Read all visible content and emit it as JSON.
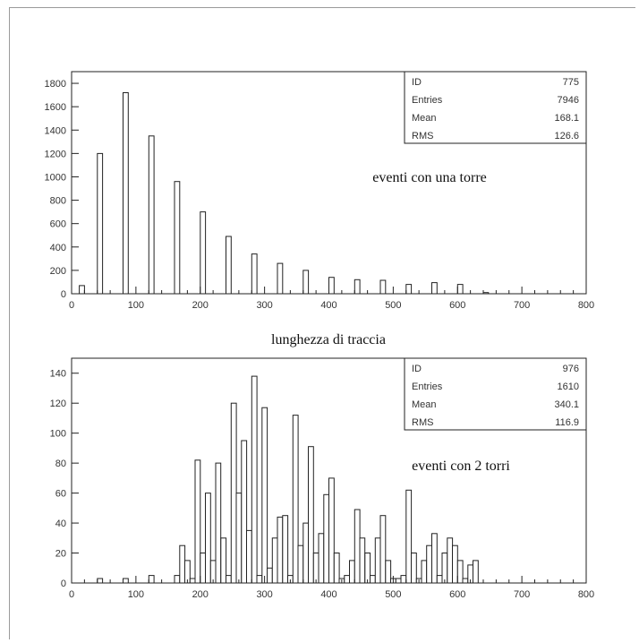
{
  "xlabel_between": "lunghezza di traccia",
  "chart_data": [
    {
      "type": "bar",
      "annotation": "eventi con una torre",
      "stats": [
        {
          "label": "ID",
          "value": "775"
        },
        {
          "label": "Entries",
          "value": "7946"
        },
        {
          "label": "Mean",
          "value": "168.1"
        },
        {
          "label": "RMS",
          "value": "126.6"
        }
      ],
      "xlim": [
        0,
        800
      ],
      "ylim": [
        0,
        1900
      ],
      "xticks": [
        0,
        100,
        200,
        300,
        400,
        500,
        600,
        700,
        800
      ],
      "yticks": [
        0,
        200,
        400,
        600,
        800,
        1000,
        1200,
        1400,
        1600,
        1800
      ],
      "bin_width": 8,
      "bins": [
        {
          "x": 12,
          "y": 70
        },
        {
          "x": 40,
          "y": 1200
        },
        {
          "x": 80,
          "y": 1720
        },
        {
          "x": 120,
          "y": 1350
        },
        {
          "x": 160,
          "y": 960
        },
        {
          "x": 200,
          "y": 700
        },
        {
          "x": 240,
          "y": 490
        },
        {
          "x": 280,
          "y": 340
        },
        {
          "x": 320,
          "y": 260
        },
        {
          "x": 360,
          "y": 200
        },
        {
          "x": 400,
          "y": 140
        },
        {
          "x": 440,
          "y": 120
        },
        {
          "x": 480,
          "y": 115
        },
        {
          "x": 520,
          "y": 80
        },
        {
          "x": 560,
          "y": 95
        },
        {
          "x": 600,
          "y": 80
        },
        {
          "x": 640,
          "y": 10
        }
      ]
    },
    {
      "type": "bar",
      "annotation": "eventi con 2 torri",
      "stats": [
        {
          "label": "ID",
          "value": "976"
        },
        {
          "label": "Entries",
          "value": "1610"
        },
        {
          "label": "Mean",
          "value": "340.1"
        },
        {
          "label": "RMS",
          "value": "116.9"
        }
      ],
      "xlim": [
        0,
        800
      ],
      "ylim": [
        0,
        150
      ],
      "xticks": [
        0,
        100,
        200,
        300,
        400,
        500,
        600,
        700,
        800
      ],
      "yticks": [
        0,
        20,
        40,
        60,
        80,
        100,
        120,
        140
      ],
      "bin_width": 8,
      "bins": [
        {
          "x": 40,
          "y": 3
        },
        {
          "x": 80,
          "y": 3
        },
        {
          "x": 120,
          "y": 5
        },
        {
          "x": 160,
          "y": 5
        },
        {
          "x": 168,
          "y": 25
        },
        {
          "x": 176,
          "y": 15
        },
        {
          "x": 184,
          "y": 3
        },
        {
          "x": 192,
          "y": 82
        },
        {
          "x": 200,
          "y": 20
        },
        {
          "x": 208,
          "y": 60
        },
        {
          "x": 216,
          "y": 15
        },
        {
          "x": 224,
          "y": 80
        },
        {
          "x": 232,
          "y": 30
        },
        {
          "x": 240,
          "y": 5
        },
        {
          "x": 248,
          "y": 120
        },
        {
          "x": 256,
          "y": 60
        },
        {
          "x": 264,
          "y": 95
        },
        {
          "x": 272,
          "y": 35
        },
        {
          "x": 280,
          "y": 138
        },
        {
          "x": 288,
          "y": 5
        },
        {
          "x": 296,
          "y": 117
        },
        {
          "x": 304,
          "y": 10
        },
        {
          "x": 312,
          "y": 30
        },
        {
          "x": 320,
          "y": 44
        },
        {
          "x": 328,
          "y": 45
        },
        {
          "x": 336,
          "y": 5
        },
        {
          "x": 344,
          "y": 112
        },
        {
          "x": 352,
          "y": 25
        },
        {
          "x": 360,
          "y": 40
        },
        {
          "x": 368,
          "y": 91
        },
        {
          "x": 376,
          "y": 20
        },
        {
          "x": 384,
          "y": 33
        },
        {
          "x": 392,
          "y": 59
        },
        {
          "x": 400,
          "y": 70
        },
        {
          "x": 408,
          "y": 20
        },
        {
          "x": 416,
          "y": 3
        },
        {
          "x": 424,
          "y": 5
        },
        {
          "x": 432,
          "y": 15
        },
        {
          "x": 440,
          "y": 49
        },
        {
          "x": 448,
          "y": 30
        },
        {
          "x": 456,
          "y": 20
        },
        {
          "x": 464,
          "y": 5
        },
        {
          "x": 472,
          "y": 30
        },
        {
          "x": 480,
          "y": 45
        },
        {
          "x": 488,
          "y": 15
        },
        {
          "x": 496,
          "y": 3
        },
        {
          "x": 504,
          "y": 3
        },
        {
          "x": 512,
          "y": 5
        },
        {
          "x": 520,
          "y": 62
        },
        {
          "x": 528,
          "y": 20
        },
        {
          "x": 536,
          "y": 3
        },
        {
          "x": 544,
          "y": 15
        },
        {
          "x": 552,
          "y": 25
        },
        {
          "x": 560,
          "y": 33
        },
        {
          "x": 568,
          "y": 5
        },
        {
          "x": 576,
          "y": 20
        },
        {
          "x": 584,
          "y": 30
        },
        {
          "x": 592,
          "y": 25
        },
        {
          "x": 600,
          "y": 15
        },
        {
          "x": 608,
          "y": 3
        },
        {
          "x": 616,
          "y": 12
        },
        {
          "x": 624,
          "y": 15
        }
      ]
    }
  ]
}
